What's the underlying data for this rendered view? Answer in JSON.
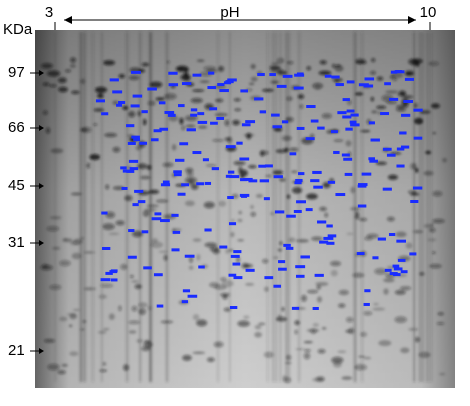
{
  "header": {
    "ph_start": "3",
    "title": "pH",
    "ph_end": "10"
  },
  "mass_axis": {
    "unit": "KDa",
    "markers": [
      97,
      66,
      45,
      31,
      21
    ]
  }
}
